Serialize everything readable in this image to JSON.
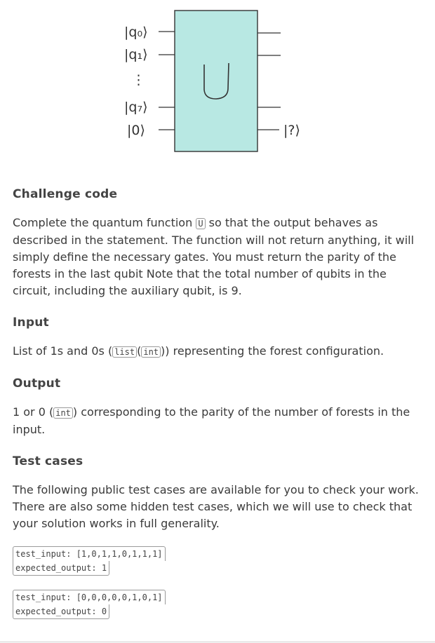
{
  "figure": {
    "inputs": [
      "|q₀⟩",
      "|q₁⟩",
      "⋮",
      "|q₇⟩",
      "|0⟩"
    ],
    "gate_label": "U",
    "output_label": "|?⟩",
    "gate_color": "#b8e8e3"
  },
  "sections": {
    "challenge_code": {
      "title": "Challenge code",
      "text_before": "Complete the quantum function ",
      "code_u": "U",
      "text_after": " so that the output behaves as described in the statement. The function will not return anything, it will simply define the necessary gates. You must return the parity of the forests in the last qubit Note that the total number of qubits in the circuit, including the auxiliary qubit, is 9."
    },
    "input": {
      "title": "Input",
      "text_before": "List of 1s and 0s (",
      "code_list": "list",
      "sep_open": "(",
      "code_int": "int",
      "text_after": ")) representing the forest configuration."
    },
    "output": {
      "title": "Output",
      "text_before": "1 or 0 (",
      "code_int": "int",
      "text_after": ") corresponding to the parity of the number of forests in the input."
    },
    "test_cases": {
      "title": "Test cases",
      "text": "The following public test cases are available for you to check your work. There are also some hidden test cases, which we will use to check that your solution works in full generality.",
      "cases": [
        {
          "input": "test_input: [1,0,1,1,0,1,1,1]",
          "output": "expected_output: 1"
        },
        {
          "input": "test_input: [0,0,0,0,0,1,0,1]",
          "output": "expected_output: 0"
        }
      ]
    }
  }
}
